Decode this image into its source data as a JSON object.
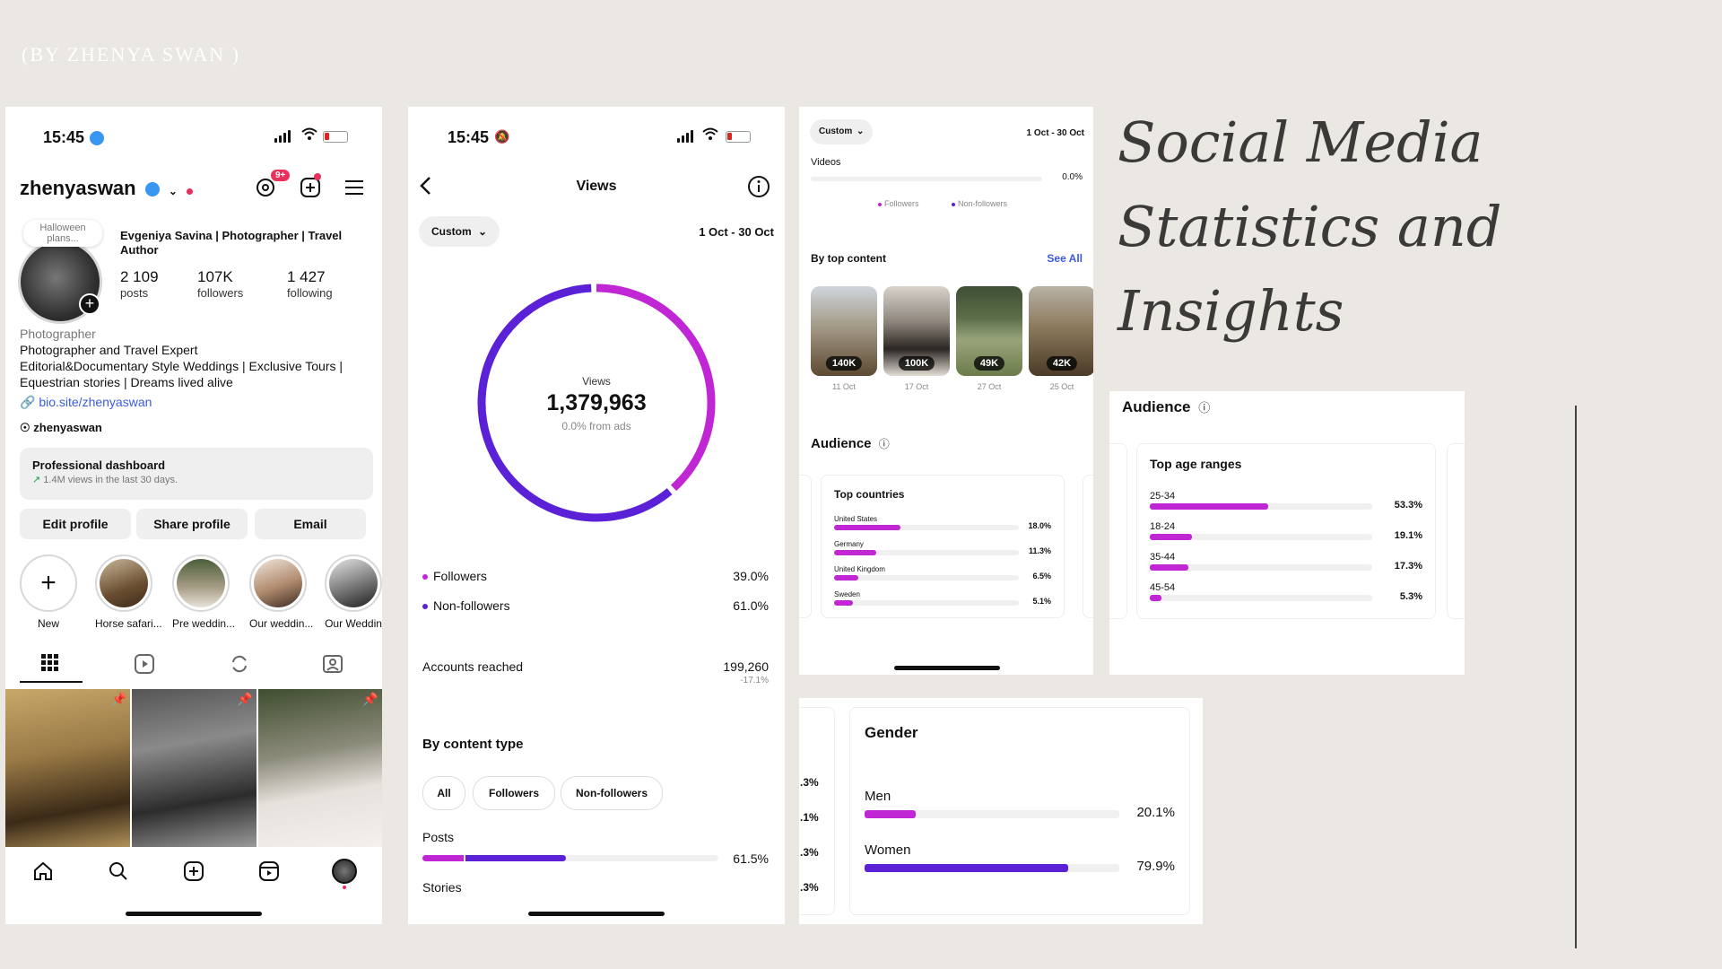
{
  "credit": "(BY ZHENYA SWAN )",
  "title_lines": [
    "Social Media",
    "Statistics and",
    "Insights"
  ],
  "profile": {
    "time": "15:45",
    "username": "zhenyaswan",
    "notif_badge": "9+",
    "note": "Halloween plans...",
    "display_name": "Evgeniya Savina | Photographer | Travel Author",
    "stats": [
      {
        "num": "2 109",
        "label": "posts"
      },
      {
        "num": "107K",
        "label": "followers"
      },
      {
        "num": "1 427",
        "label": "following"
      }
    ],
    "category": "Photographer",
    "bio": [
      "Photographer and Travel Expert",
      "Editorial&Documentary Style Weddings | Exclusive Tours |",
      "Equestrian stories | Dreams lived alive"
    ],
    "link": "bio.site/zhenyaswan",
    "threads": "zhenyaswan",
    "dashboard_title": "Professional dashboard",
    "dashboard_sub": "1.4M views in the last 30 days.",
    "buttons": [
      "Edit profile",
      "Share profile",
      "Email"
    ],
    "highlights": [
      "New",
      "Horse safari...",
      "Pre weddin...",
      "Our weddin...",
      "Our Weddin"
    ]
  },
  "views": {
    "time": "15:45",
    "header": "Views",
    "range_select": "Custom",
    "date_range": "1 Oct - 30 Oct",
    "donut_label": "Views",
    "total": "1,379,963",
    "from_ads": "0.0% from ads",
    "followers_label": "Followers",
    "followers_pct": "39.0%",
    "nonfollowers_label": "Non-followers",
    "nonfollowers_pct": "61.0%",
    "reached_label": "Accounts reached",
    "reached_value": "199,260",
    "reached_change": "-17.1%",
    "content_type_header": "By content type",
    "chips": [
      "All",
      "Followers",
      "Non-followers"
    ],
    "posts_label": "Posts",
    "posts_pct": "61.5%",
    "stories_label": "Stories",
    "share_followers": 39.0,
    "share_nonfollowers": 61.0,
    "posts_followers_share": 14,
    "posts_nonfollowers_share": 34
  },
  "content": {
    "range_select": "Custom",
    "date_range": "1 Oct - 30 Oct",
    "videos_label": "Videos",
    "videos_pct": "0.0%",
    "legend_followers": "Followers",
    "legend_nonfollowers": "Non-followers",
    "top_content_header": "By top content",
    "see_all": "See All",
    "thumbs": [
      {
        "views": "140K",
        "date": "11 Oct"
      },
      {
        "views": "100K",
        "date": "17 Oct"
      },
      {
        "views": "49K",
        "date": "27 Oct"
      },
      {
        "views": "42K",
        "date": "25 Oct"
      }
    ],
    "audience_header": "Audience",
    "countries_header": "Top countries",
    "countries": [
      {
        "name": "United States",
        "pct": "18.0%",
        "value": 18.0
      },
      {
        "name": "Germany",
        "pct": "11.3%",
        "value": 11.3
      },
      {
        "name": "United Kingdom",
        "pct": "6.5%",
        "value": 6.5
      },
      {
        "name": "Sweden",
        "pct": "5.1%",
        "value": 5.1
      }
    ]
  },
  "age": {
    "audience_header": "Audience",
    "header": "Top age ranges",
    "ranges": [
      {
        "name": "25-34",
        "pct": "53.3%",
        "value": 53.3
      },
      {
        "name": "18-24",
        "pct": "19.1%",
        "value": 19.1
      },
      {
        "name": "35-44",
        "pct": "17.3%",
        "value": 17.3
      },
      {
        "name": "45-54",
        "pct": "5.3%",
        "value": 5.3
      }
    ]
  },
  "gender": {
    "header": "Gender",
    "side_values": [
      ".3%",
      ".1%",
      ".3%",
      ".3%"
    ],
    "rows": [
      {
        "name": "Men",
        "pct": "20.1%",
        "value": 20.1
      },
      {
        "name": "Women",
        "pct": "79.9%",
        "value": 79.9
      }
    ]
  },
  "colors": {
    "accent_pink": "#c026d3",
    "accent_purple": "#5b21d6",
    "link": "#3b5bdb"
  }
}
